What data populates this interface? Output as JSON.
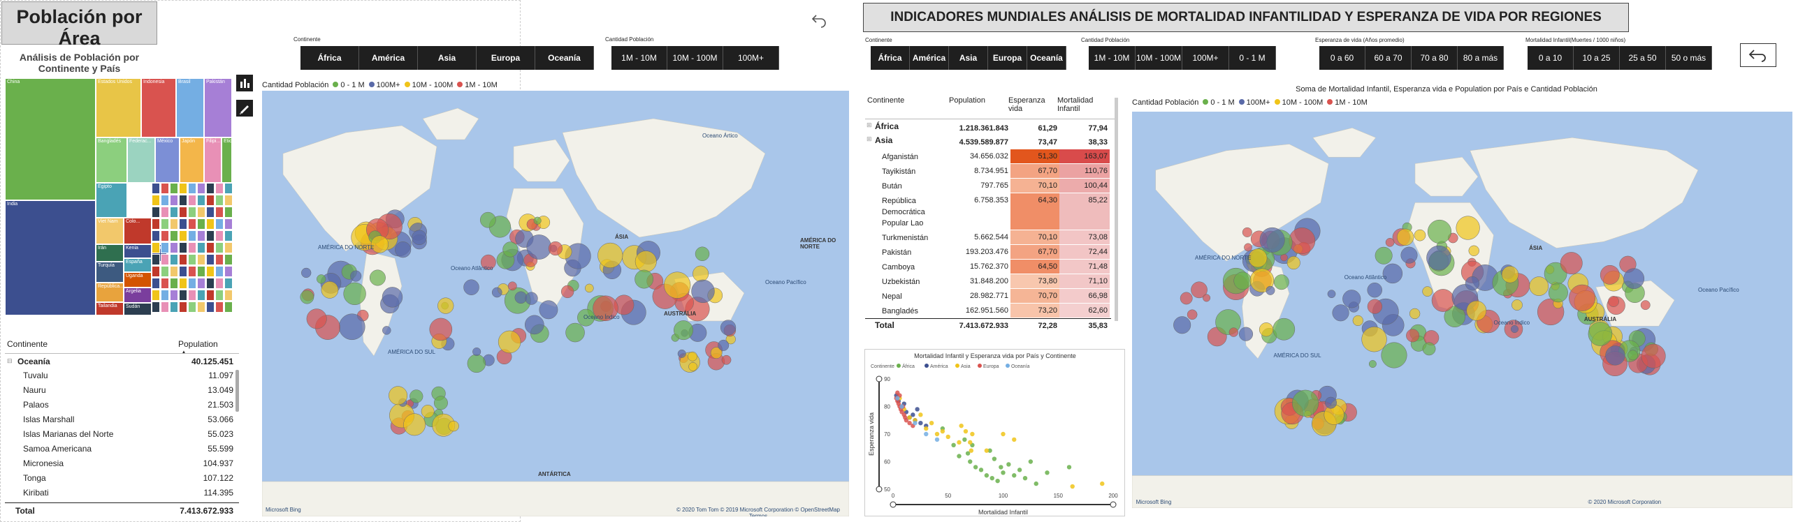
{
  "left": {
    "title": "Población por Área",
    "subtitle": "Análisis de Población por Continente y País",
    "continent_slicer": {
      "label": "Continente",
      "options": [
        "África",
        "América",
        "Asia",
        "Europa",
        "Oceanía"
      ]
    },
    "population_slicer": {
      "label": "Cantidad Población",
      "options": [
        "1M - 10M",
        "10M - 100M",
        "100M+"
      ]
    },
    "treemap": [
      {
        "label": "China",
        "color": "#6ab04c"
      },
      {
        "label": "Estados Unidos",
        "color": "#e8c547"
      },
      {
        "label": "Indonesia",
        "color": "#d9534f"
      },
      {
        "label": "Brasil",
        "color": "#74aee3"
      },
      {
        "label": "Pakistán",
        "color": "#a67fd6"
      },
      {
        "label": "India",
        "color": "#3c4f8f"
      },
      {
        "label": "Bangladés",
        "color": "#8ccf7e"
      },
      {
        "label": "Federac...",
        "color": "#9bd3c0"
      },
      {
        "label": "México",
        "color": "#7c8fd6"
      },
      {
        "label": "Japón",
        "color": "#f3b64a"
      },
      {
        "label": "Filipi...",
        "color": "#e890b6"
      },
      {
        "label": "Etio...",
        "color": "#6ab04c"
      },
      {
        "label": "Egipto",
        "color": "#4aa3b5"
      },
      {
        "label": "Viet Nam",
        "color": "#f2c86b"
      },
      {
        "label": "Colo...",
        "color": "#c0392b"
      },
      {
        "label": "Kenia",
        "color": "#3c4f8f"
      },
      {
        "label": "España",
        "color": "#4aa3b5"
      },
      {
        "label": "Irán",
        "color": "#2f6f4f"
      },
      {
        "label": "Turquía",
        "color": "#3d5a80"
      },
      {
        "label": "República...",
        "color": "#e8a33d"
      },
      {
        "label": "Tailandia",
        "color": "#c0392b"
      },
      {
        "label": "Ucrania",
        "color": "#3c4f8f"
      },
      {
        "label": "Uganda",
        "color": "#d35400"
      },
      {
        "label": "Argelia",
        "color": "#7a3e9d"
      },
      {
        "label": "Sudán",
        "color": "#2c3e50"
      }
    ],
    "table": {
      "headers": [
        "Continente",
        "Population"
      ],
      "group": {
        "name": "Oceanía",
        "value": "40.125.451"
      },
      "rows": [
        {
          "name": "Tuvalu",
          "value": "11.097"
        },
        {
          "name": "Nauru",
          "value": "13.049"
        },
        {
          "name": "Palaos",
          "value": "21.503"
        },
        {
          "name": "Islas Marshall",
          "value": "53.066"
        },
        {
          "name": "Islas Marianas del Norte",
          "value": "55.023"
        },
        {
          "name": "Samoa Americana",
          "value": "55.599"
        },
        {
          "name": "Micronesia",
          "value": "104.937"
        },
        {
          "name": "Tonga",
          "value": "107.122"
        },
        {
          "name": "Kiribati",
          "value": "114.395"
        }
      ],
      "total_label": "Total",
      "total_value": "7.413.672.933"
    },
    "map_legend": {
      "title": "Cantidad Población",
      "items": [
        {
          "label": "0 - 1 M",
          "color": "#6ab04c"
        },
        {
          "label": "100M+",
          "color": "#5a6aa8"
        },
        {
          "label": "10M - 100M",
          "color": "#f0c419"
        },
        {
          "label": "1M - 10M",
          "color": "#d9534f"
        }
      ]
    },
    "map_labels": {
      "north_america": "AMÉRICA DO NORTE",
      "south_america": "AMÉRICA DO SUL",
      "asia": "ÁSIA",
      "australia": "AUSTRÁLIA",
      "antarctica": "ANTÁRTICA",
      "north_america_right": "AMÉRICA DO NORTE",
      "atlantic": "Oceano Atlântico",
      "pacific": "Oceano Pacífico",
      "indian": "Oceano Índico",
      "arctic": "Oceano Ártico",
      "attribution": "© 2020 Tom Tom © 2019 Microsoft Corporation © OpenStreetMap Termos",
      "bing": "Microsoft Bing"
    }
  },
  "right": {
    "title": "INDICADORES MUNDIALES ANÁLISIS DE MORTALIDAD INFANTILIDAD Y ESPERANZA DE VIDA POR REGIONES",
    "continent_slicer": {
      "label": "Continente",
      "options": [
        "África",
        "América",
        "Asia",
        "Europa",
        "Oceanía"
      ]
    },
    "population_slicer": {
      "label": "Cantidad Población",
      "options": [
        "1M - 10M",
        "10M - 100M",
        "100M+",
        "0 - 1 M"
      ]
    },
    "life_slicer": {
      "label": "Esperanza de vida (Años promedio)",
      "options": [
        "0 a 60",
        "60 a 70",
        "70 a 80",
        "80 a más"
      ]
    },
    "mort_slicer": {
      "label": "Mortalidad Infantil(Muertes / 1000 niños)",
      "options": [
        "0 a 10",
        "10 a 25",
        "25 a 50",
        "50 o más"
      ]
    },
    "matrix": {
      "headers": [
        "Continente",
        "Population",
        "Esperanza vida",
        "Mortalidad Infantil"
      ],
      "groups": [
        {
          "name": "África",
          "pop": "1.218.361.843",
          "life": "61,29",
          "mort": "77,94"
        },
        {
          "name": "Asia",
          "pop": "4.539.589.877",
          "life": "73,47",
          "mort": "38,33"
        }
      ],
      "rows": [
        {
          "name": "Afganistán",
          "pop": "34.656.032",
          "life": "51,30",
          "mort": "163,07",
          "lc": "#e2561d",
          "mc": "#d94b4b"
        },
        {
          "name": "Tayikistán",
          "pop": "8.734.951",
          "life": "67,70",
          "mort": "110,76",
          "lc": "#f3a382",
          "mc": "#eba2a2"
        },
        {
          "name": "Bután",
          "pop": "797.765",
          "life": "70,10",
          "mort": "100,44",
          "lc": "#f5b293",
          "mc": "#ecabab"
        },
        {
          "name": "República Democrática Popular Lao",
          "pop": "6.758.353",
          "life": "64,30",
          "mort": "85,22",
          "lc": "#f08e67",
          "mc": "#efbcbc"
        },
        {
          "name": "Turkmenistán",
          "pop": "5.662.544",
          "life": "70,10",
          "mort": "73,08",
          "lc": "#f5b293",
          "mc": "#f2c5c5"
        },
        {
          "name": "Pakistán",
          "pop": "193.203.476",
          "life": "67,70",
          "mort": "72,44",
          "lc": "#f3a382",
          "mc": "#f2c5c5"
        },
        {
          "name": "Camboya",
          "pop": "15.762.370",
          "life": "64,50",
          "mort": "71,48",
          "lc": "#f08e67",
          "mc": "#f2c7c7"
        },
        {
          "name": "Uzbekistán",
          "pop": "31.848.200",
          "life": "73,80",
          "mort": "71,10",
          "lc": "#f8c7ae",
          "mc": "#f2c7c7"
        },
        {
          "name": "Nepal",
          "pop": "28.982.771",
          "life": "70,70",
          "mort": "66,98",
          "lc": "#f5b596",
          "mc": "#f3cbcb"
        },
        {
          "name": "Bangladés",
          "pop": "162.951.560",
          "life": "73,20",
          "mort": "62,60",
          "lc": "#f8c4aa",
          "mc": "#f4cfcf"
        }
      ],
      "total": {
        "name": "Total",
        "pop": "7.413.672.933",
        "life": "72,28",
        "mort": "35,83"
      }
    },
    "map_title": "Soma de Mortalidad Infantil, Esperanza vida e Population por País e Cantidad Población",
    "map_legend": {
      "title": "Cantidad Población",
      "items": [
        {
          "label": "0 - 1 M",
          "color": "#6ab04c"
        },
        {
          "label": "100M+",
          "color": "#5a6aa8"
        },
        {
          "label": "10M - 100M",
          "color": "#f0c419"
        },
        {
          "label": "1M - 10M",
          "color": "#d9534f"
        }
      ]
    },
    "map_labels": {
      "north_america": "AMÉRICA DO NORTE",
      "south_america": "AMÉRICA DO SUL",
      "asia": "ÁSIA",
      "australia": "AUSTRÁLIA",
      "atlantic": "Oceano Atlântico",
      "pacific": "Oceano Pacífico",
      "pacific_right": "Oceano Pacífico",
      "indian": "Oceano Índico",
      "bing": "Microsoft Bing",
      "attribution": "© 2020 Microsoft Corporation"
    }
  },
  "chart_data": {
    "type": "scatter",
    "title": "Mortalidad Infantil y Esperanza vida por País y Continente",
    "xlabel": "Mortalidad Infantil",
    "ylabel": "Esperanza vida",
    "xlim": [
      0,
      200
    ],
    "ylim": [
      50,
      90
    ],
    "x_ticks": [
      0,
      50,
      100,
      150,
      200
    ],
    "y_ticks": [
      50,
      60,
      70,
      80,
      90
    ],
    "legend_title": "Continente",
    "legend_position": "top",
    "series": [
      {
        "name": "África",
        "color": "#6ab04c",
        "points": [
          [
            45,
            72
          ],
          [
            55,
            66
          ],
          [
            60,
            62
          ],
          [
            70,
            60
          ],
          [
            75,
            58
          ],
          [
            80,
            57
          ],
          [
            85,
            55
          ],
          [
            90,
            54
          ],
          [
            95,
            53
          ],
          [
            100,
            56
          ],
          [
            105,
            59
          ],
          [
            110,
            55
          ],
          [
            115,
            57
          ],
          [
            120,
            54
          ],
          [
            125,
            60
          ],
          [
            130,
            52
          ],
          [
            88,
            64
          ],
          [
            92,
            61
          ],
          [
            68,
            63
          ],
          [
            72,
            66
          ],
          [
            98,
            58
          ],
          [
            140,
            56
          ],
          [
            160,
            58
          ],
          [
            65,
            68
          ]
        ]
      },
      {
        "name": "América",
        "color": "#3c4f8f",
        "points": [
          [
            3,
            84
          ],
          [
            5,
            82
          ],
          [
            8,
            80
          ],
          [
            12,
            78
          ],
          [
            15,
            76
          ],
          [
            20,
            75
          ],
          [
            25,
            74
          ],
          [
            30,
            73
          ],
          [
            18,
            77
          ],
          [
            22,
            79
          ],
          [
            10,
            81
          ]
        ]
      },
      {
        "name": "Asia",
        "color": "#f0c419",
        "points": [
          [
            6,
            83
          ],
          [
            10,
            79
          ],
          [
            15,
            76
          ],
          [
            20,
            75
          ],
          [
            30,
            72
          ],
          [
            40,
            70
          ],
          [
            50,
            69
          ],
          [
            60,
            67
          ],
          [
            70,
            67
          ],
          [
            71,
            64
          ],
          [
            72,
            70
          ],
          [
            85,
            64
          ],
          [
            100,
            70
          ],
          [
            110,
            68
          ],
          [
            163,
            51
          ],
          [
            66,
            71
          ],
          [
            62,
            73
          ],
          [
            35,
            74
          ],
          [
            45,
            71
          ],
          [
            25,
            77
          ],
          [
            190,
            52
          ]
        ]
      },
      {
        "name": "Europa",
        "color": "#d9534f",
        "points": [
          [
            3,
            83
          ],
          [
            4,
            82
          ],
          [
            5,
            81
          ],
          [
            6,
            80
          ],
          [
            7,
            79
          ],
          [
            8,
            78
          ],
          [
            10,
            77
          ],
          [
            12,
            75
          ],
          [
            15,
            74
          ],
          [
            9,
            80
          ],
          [
            6,
            84
          ],
          [
            4,
            85
          ],
          [
            11,
            76
          ],
          [
            18,
            73
          ]
        ]
      },
      {
        "name": "Oceanía",
        "color": "#74aee3",
        "points": [
          [
            4,
            83
          ],
          [
            8,
            80
          ],
          [
            20,
            74
          ],
          [
            30,
            70
          ],
          [
            40,
            68
          ]
        ]
      }
    ]
  }
}
